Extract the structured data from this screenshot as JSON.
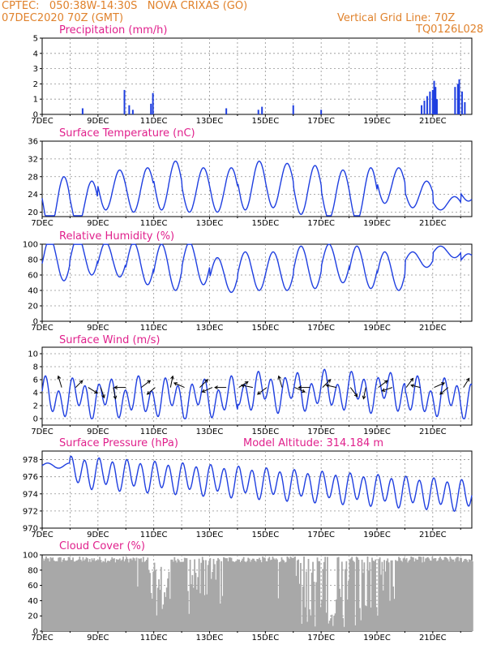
{
  "header": {
    "left_line1": "CPTEC:   050:38W-14:30S   NOVA CRIXAS (GO)",
    "left_line2": "07DEC2020 70Z (GMT)",
    "right_line1": "Vertical Grid Line: 70Z",
    "right_line2": "TQ0126L028"
  },
  "colors": {
    "header": "#e0822c",
    "title": "#e0208c",
    "series": "#1f3fe0",
    "cloud": "#a8a8a8",
    "grid": "#909090",
    "arrow": "#000000"
  },
  "x_axis": {
    "labels": [
      "7DEC",
      "9DEC",
      "11DEC",
      "13DEC",
      "15DEC",
      "17DEC",
      "19DEC",
      "21DEC"
    ],
    "day_span": 15.4
  },
  "chart_data": [
    {
      "type": "bar",
      "title": "Precipitation (mm/h)",
      "ylim": [
        0,
        5
      ],
      "yticks": [
        0,
        1,
        2,
        3,
        4,
        5
      ],
      "grid": true,
      "bars": [
        {
          "x": 1.45,
          "value": 0.4
        },
        {
          "x": 2.95,
          "value": 1.6
        },
        {
          "x": 3.12,
          "value": 0.6
        },
        {
          "x": 3.25,
          "value": 0.3
        },
        {
          "x": 3.9,
          "value": 0.7
        },
        {
          "x": 3.97,
          "value": 1.4
        },
        {
          "x": 6.6,
          "value": 0.4
        },
        {
          "x": 7.75,
          "value": 0.3
        },
        {
          "x": 7.88,
          "value": 0.5
        },
        {
          "x": 9.0,
          "value": 0.6
        },
        {
          "x": 10.0,
          "value": 0.3
        },
        {
          "x": 13.6,
          "value": 0.6
        },
        {
          "x": 13.7,
          "value": 0.9
        },
        {
          "x": 13.8,
          "value": 1.2
        },
        {
          "x": 13.9,
          "value": 1.5
        },
        {
          "x": 14.0,
          "value": 1.6
        },
        {
          "x": 14.05,
          "value": 2.2
        },
        {
          "x": 14.1,
          "value": 1.8
        },
        {
          "x": 14.15,
          "value": 1.0
        },
        {
          "x": 14.8,
          "value": 1.8
        },
        {
          "x": 14.9,
          "value": 2.0
        },
        {
          "x": 14.95,
          "value": 2.3
        },
        {
          "x": 15.05,
          "value": 1.5
        },
        {
          "x": 15.15,
          "value": 0.8
        }
      ]
    },
    {
      "type": "line",
      "title": "Surface Temperature (nC)",
      "ylim": [
        19,
        36
      ],
      "yticks": [
        20,
        24,
        28,
        32,
        36
      ],
      "grid": true,
      "base": [
        22,
        22,
        25,
        25,
        26,
        25,
        25,
        26,
        26,
        25,
        24,
        24,
        26,
        24,
        22,
        24
      ],
      "amp": [
        12,
        10,
        9,
        10,
        11,
        10,
        10,
        11,
        10,
        11,
        11,
        12,
        8,
        6,
        3,
        3
      ]
    },
    {
      "type": "line",
      "title": "Relative Humidity (%)",
      "ylim": [
        0,
        100
      ],
      "yticks": [
        0,
        20,
        40,
        60,
        80,
        100
      ],
      "grid": true,
      "base": [
        80,
        85,
        80,
        75,
        70,
        75,
        60,
        65,
        65,
        70,
        75,
        70,
        65,
        80,
        90,
        80
      ],
      "amp": [
        55,
        50,
        45,
        55,
        60,
        55,
        45,
        50,
        50,
        55,
        50,
        55,
        50,
        20,
        15,
        15
      ]
    },
    {
      "type": "line",
      "title": "Surface Wind (m/s)",
      "ylim": [
        -1,
        11
      ],
      "yticks": [
        0,
        2,
        4,
        6,
        8,
        10
      ],
      "grid": true,
      "vectors": [
        {
          "x": 0.7,
          "u": -0.3,
          "v": 1
        },
        {
          "x": 1.2,
          "u": 0.6,
          "v": 0.6
        },
        {
          "x": 1.65,
          "u": 0.8,
          "v": -0.5
        },
        {
          "x": 2.1,
          "u": 0.3,
          "v": -0.9
        },
        {
          "x": 2.55,
          "u": 0.2,
          "v": -1
        },
        {
          "x": 3.0,
          "u": -1,
          "v": 0
        },
        {
          "x": 3.55,
          "u": 0.8,
          "v": 0.6
        },
        {
          "x": 4.05,
          "u": -0.7,
          "v": -0.6
        },
        {
          "x": 4.6,
          "u": 0.2,
          "v": 1
        },
        {
          "x": 5.1,
          "u": -0.9,
          "v": 0.4
        },
        {
          "x": 5.65,
          "u": 0.7,
          "v": 0.7
        },
        {
          "x": 6.1,
          "u": -0.9,
          "v": -0.4
        },
        {
          "x": 6.6,
          "u": -1,
          "v": 0
        },
        {
          "x": 7.05,
          "u": 0.8,
          "v": 0.5
        },
        {
          "x": 7.55,
          "u": -1,
          "v": 0.2
        },
        {
          "x": 8.05,
          "u": -0.8,
          "v": -0.6
        },
        {
          "x": 8.6,
          "u": -0.3,
          "v": 1
        },
        {
          "x": 9.05,
          "u": 0.9,
          "v": -0.4
        },
        {
          "x": 9.6,
          "u": -1,
          "v": 0
        },
        {
          "x": 10.05,
          "u": 0.7,
          "v": 0.7
        },
        {
          "x": 10.55,
          "u": -0.9,
          "v": 0.2
        },
        {
          "x": 11.05,
          "u": 0.6,
          "v": -0.8
        },
        {
          "x": 11.6,
          "u": -0.2,
          "v": -1
        },
        {
          "x": 12.05,
          "u": 0.8,
          "v": 0.6
        },
        {
          "x": 12.55,
          "u": -0.9,
          "v": -0.3
        },
        {
          "x": 13.05,
          "u": 0.6,
          "v": 0.8
        },
        {
          "x": 13.55,
          "u": -0.8,
          "v": 0.2
        },
        {
          "x": 14.05,
          "u": 0.9,
          "v": 0.4
        },
        {
          "x": 14.55,
          "u": -0.7,
          "v": -0.6
        },
        {
          "x": 15.1,
          "u": 0.5,
          "v": 0.8
        }
      ]
    },
    {
      "type": "line",
      "title": "Surface Pressure (hPa)",
      "annotation": "Model Altitude: 314.184 m",
      "ylim": [
        970,
        979
      ],
      "yticks": [
        970,
        972,
        974,
        976,
        978
      ],
      "grid": true
    },
    {
      "type": "area",
      "title": "Cloud Cover (%)",
      "ylim": [
        0,
        100
      ],
      "yticks": [
        0,
        20,
        40,
        60,
        80,
        100
      ],
      "grid": true,
      "color": "#a8a8a8"
    }
  ]
}
